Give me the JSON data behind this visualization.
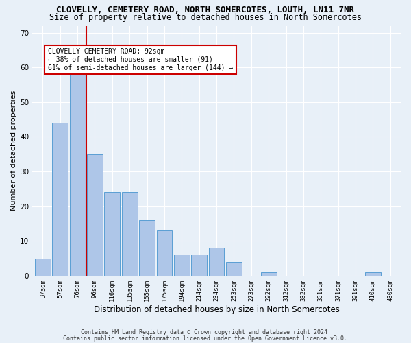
{
  "title": "CLOVELLY, CEMETERY ROAD, NORTH SOMERCOTES, LOUTH, LN11 7NR",
  "subtitle": "Size of property relative to detached houses in North Somercotes",
  "xlabel": "Distribution of detached houses by size in North Somercotes",
  "ylabel": "Number of detached properties",
  "categories": [
    "37sqm",
    "57sqm",
    "76sqm",
    "96sqm",
    "116sqm",
    "135sqm",
    "155sqm",
    "175sqm",
    "194sqm",
    "214sqm",
    "234sqm",
    "253sqm",
    "273sqm",
    "292sqm",
    "312sqm",
    "332sqm",
    "351sqm",
    "371sqm",
    "391sqm",
    "410sqm",
    "430sqm"
  ],
  "values": [
    5,
    44,
    59,
    35,
    24,
    24,
    16,
    13,
    6,
    6,
    8,
    4,
    0,
    1,
    0,
    0,
    0,
    0,
    0,
    1,
    0
  ],
  "bar_color": "#aec6e8",
  "bar_edgecolor": "#5a9fd4",
  "vline_x": 2.5,
  "vline_color": "#cc0000",
  "annotation_title": "CLOVELLY CEMETERY ROAD: 92sqm",
  "annotation_line1": "← 38% of detached houses are smaller (91)",
  "annotation_line2": "61% of semi-detached houses are larger (144) →",
  "ylim": [
    0,
    72
  ],
  "yticks": [
    0,
    10,
    20,
    30,
    40,
    50,
    60,
    70
  ],
  "footnote1": "Contains HM Land Registry data © Crown copyright and database right 2024.",
  "footnote2": "Contains public sector information licensed under the Open Government Licence v3.0.",
  "bg_color": "#e8f0f8",
  "plot_bg_color": "#e8f0f8",
  "grid_color": "#ffffff",
  "title_fontsize": 9,
  "subtitle_fontsize": 8.5,
  "xlabel_fontsize": 8.5,
  "ylabel_fontsize": 8
}
